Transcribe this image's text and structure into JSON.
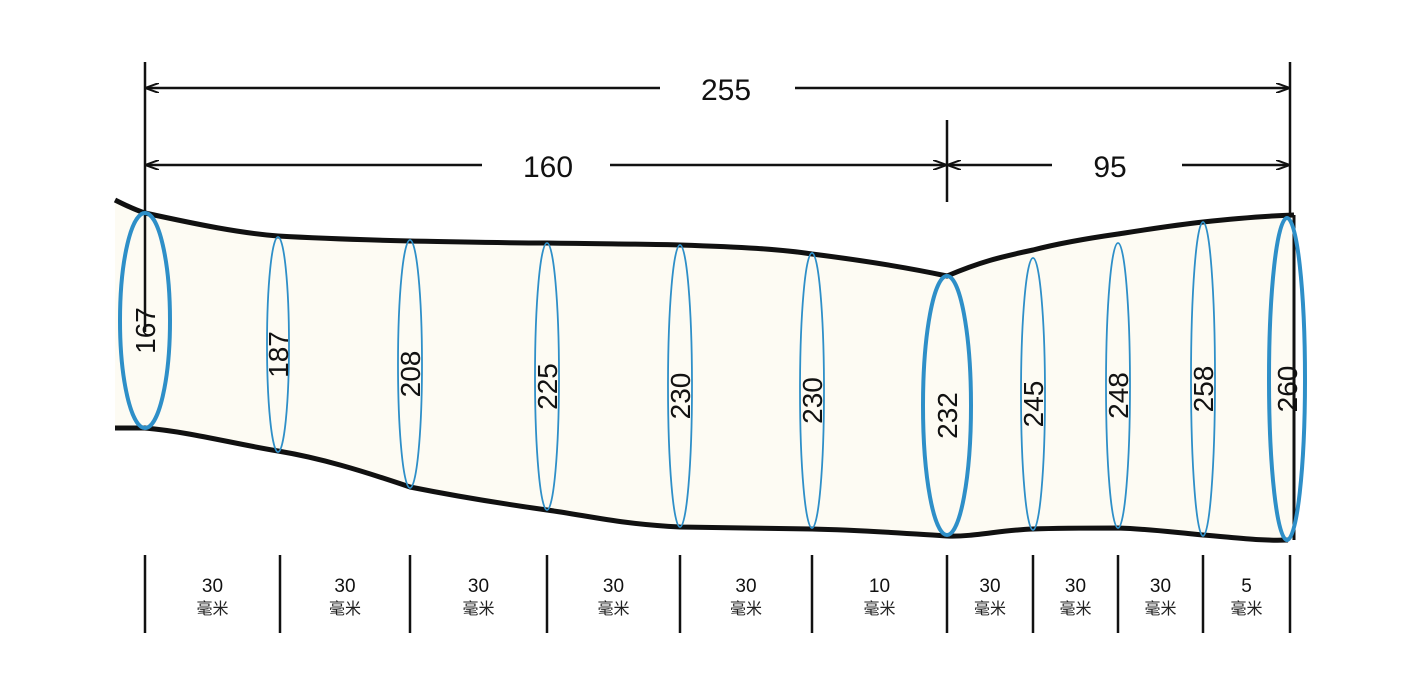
{
  "dimensions": {
    "total": "255",
    "left": "160",
    "right": "95"
  },
  "diameters": [
    "167",
    "187",
    "208",
    "225",
    "230",
    "230",
    "232",
    "245",
    "248",
    "258",
    "260"
  ],
  "segments": [
    {
      "value": "30",
      "unit": "毫米"
    },
    {
      "value": "30",
      "unit": "毫米"
    },
    {
      "value": "30",
      "unit": "毫米"
    },
    {
      "value": "30",
      "unit": "毫米"
    },
    {
      "value": "30",
      "unit": "毫米"
    },
    {
      "value": "10",
      "unit": "毫米"
    },
    {
      "value": "30",
      "unit": "毫米"
    },
    {
      "value": "30",
      "unit": "毫米"
    },
    {
      "value": "30",
      "unit": "毫米"
    },
    {
      "value": "5",
      "unit": "毫米"
    }
  ],
  "colors": {
    "ring": "#2e8fc8",
    "outline": "#111111",
    "fill": "#fdfbf3"
  }
}
